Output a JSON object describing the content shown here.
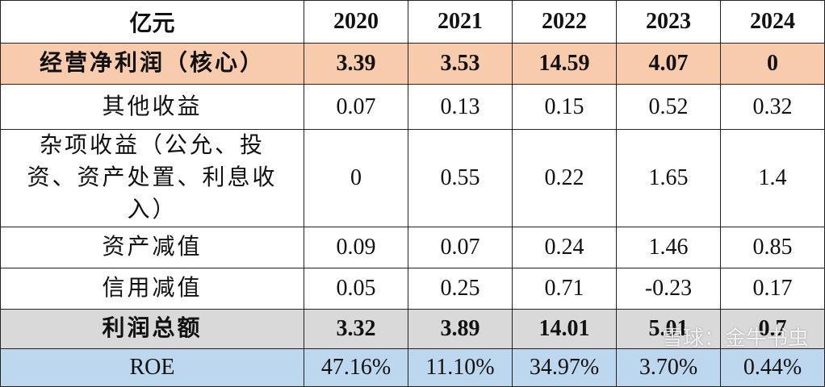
{
  "table": {
    "header": [
      "亿元",
      "2020",
      "2021",
      "2022",
      "2023",
      "2024"
    ],
    "rows": [
      [
        "经营净利润（核心）",
        "3.39",
        "3.53",
        "14.59",
        "4.07",
        "0"
      ],
      [
        "其他收益",
        "0.07",
        "0.13",
        "0.15",
        "0.52",
        "0.32"
      ],
      [
        "杂项收益（公允、投资、资产处置、利息收入）",
        "0",
        "0.55",
        "0.22",
        "1.65",
        "1.4"
      ],
      [
        "资产减值",
        "0.09",
        "0.07",
        "0.24",
        "1.46",
        "0.85"
      ],
      [
        "信用减值",
        "0.05",
        "0.25",
        "0.71",
        "-0.23",
        "0.17"
      ],
      [
        "利润总额",
        "3.32",
        "3.89",
        "14.01",
        "5.01",
        "0.7"
      ],
      [
        "ROE",
        "47.16%",
        "11.10%",
        "34.97%",
        "3.70%",
        "0.44%"
      ]
    ]
  },
  "watermark": "雪球：金牛书虫"
}
